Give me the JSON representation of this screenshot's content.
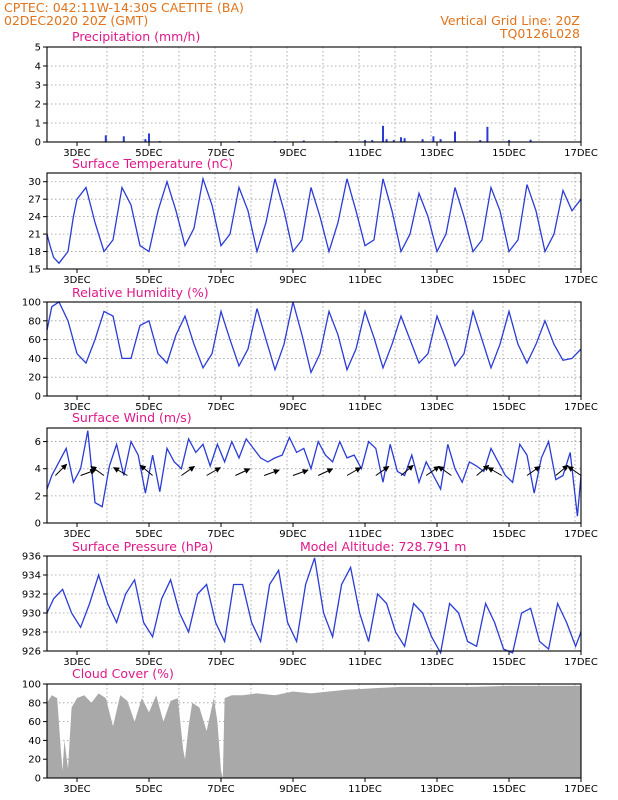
{
  "header": {
    "left_line1": "CPTEC:   042:11W-14:30S   CAETITE (BA)",
    "left_line2": "02DEC2020 20Z (GMT)",
    "right_line1": "Vertical Grid Line: 20Z",
    "right_line2": "TQ0126L028"
  },
  "colors": {
    "header": "#e0731c",
    "title": "#e0188a",
    "series": "#2b3cd6",
    "cloud": "#a9a9a9",
    "arrow": "#000000"
  },
  "chart_data": [
    {
      "type": "bar",
      "title": "Precipitation (mm/h)",
      "x_tick_labels": [
        "3DEC",
        "5DEC",
        "7DEC",
        "9DEC",
        "11DEC",
        "13DEC",
        "15DEC",
        "17DEC"
      ],
      "x_range": [
        2.1667,
        17.0
      ],
      "ylim": [
        0,
        5
      ],
      "yticks": [
        0,
        1,
        2,
        3,
        4,
        5
      ],
      "x": [
        3.8,
        4.3,
        4.9,
        5.0,
        5.3,
        7.5,
        8.5,
        9.3,
        10.2,
        11.0,
        11.2,
        11.5,
        11.6,
        11.8,
        12.0,
        12.1,
        12.6,
        12.9,
        13.1,
        13.5,
        14.2,
        14.4,
        15.0,
        15.6
      ],
      "values": [
        0.35,
        0.3,
        0.15,
        0.45,
        0.05,
        0.05,
        0.05,
        0.08,
        0.05,
        0.1,
        0.1,
        0.85,
        0.15,
        0.1,
        0.25,
        0.2,
        0.15,
        0.3,
        0.15,
        0.55,
        0.1,
        0.8,
        0.1,
        0.12
      ]
    },
    {
      "type": "line",
      "title": "Surface Temperature (nC)",
      "x_tick_labels": [
        "3DEC",
        "5DEC",
        "7DEC",
        "9DEC",
        "11DEC",
        "13DEC",
        "15DEC",
        "17DEC"
      ],
      "x_range": [
        2.1667,
        17.0
      ],
      "ylim": [
        15,
        31.5
      ],
      "yticks": [
        15,
        18,
        21,
        24,
        27,
        30
      ],
      "x": [
        2.1667,
        2.25,
        2.35,
        2.5,
        2.75,
        2.9,
        3.0,
        3.25,
        3.5,
        3.75,
        4.0,
        4.25,
        4.5,
        4.75,
        5.0,
        5.25,
        5.5,
        5.75,
        6.0,
        6.25,
        6.5,
        6.75,
        7.0,
        7.25,
        7.5,
        7.75,
        8.0,
        8.25,
        8.5,
        8.75,
        9.0,
        9.25,
        9.5,
        9.75,
        10.0,
        10.25,
        10.5,
        10.75,
        11.0,
        11.25,
        11.5,
        11.75,
        12.0,
        12.25,
        12.5,
        12.75,
        13.0,
        13.25,
        13.5,
        13.75,
        14.0,
        14.25,
        14.5,
        14.75,
        15.0,
        15.25,
        15.5,
        15.75,
        16.0,
        16.25,
        16.5,
        16.75,
        17.0
      ],
      "values": [
        21,
        19,
        17,
        16,
        18,
        24,
        27,
        29,
        23,
        18,
        20,
        29,
        26,
        19,
        18,
        25,
        30,
        25,
        19,
        22,
        30.5,
        26,
        19,
        21,
        29,
        25,
        18,
        23,
        30.5,
        25,
        18,
        20,
        29,
        24,
        18,
        23,
        30.5,
        25,
        19,
        20,
        30.5,
        25,
        18,
        21,
        28,
        24,
        18,
        21,
        29,
        24,
        18,
        20,
        29,
        25,
        18,
        20,
        29.5,
        25,
        18,
        21,
        28.5,
        25,
        27
      ]
    },
    {
      "type": "line",
      "title": "Relative Humidity (%)",
      "x_tick_labels": [
        "3DEC",
        "5DEC",
        "7DEC",
        "9DEC",
        "11DEC",
        "13DEC",
        "15DEC",
        "17DEC"
      ],
      "x_range": [
        2.1667,
        17.0
      ],
      "ylim": [
        0,
        100
      ],
      "yticks": [
        0,
        20,
        40,
        60,
        80,
        100
      ],
      "x": [
        2.1667,
        2.3,
        2.5,
        2.75,
        3.0,
        3.25,
        3.5,
        3.75,
        4.0,
        4.25,
        4.5,
        4.75,
        5.0,
        5.25,
        5.5,
        5.75,
        6.0,
        6.25,
        6.5,
        6.75,
        7.0,
        7.25,
        7.5,
        7.75,
        8.0,
        8.25,
        8.5,
        8.75,
        9.0,
        9.25,
        9.5,
        9.75,
        10.0,
        10.25,
        10.5,
        10.75,
        11.0,
        11.25,
        11.5,
        11.75,
        12.0,
        12.25,
        12.5,
        12.75,
        13.0,
        13.25,
        13.5,
        13.75,
        14.0,
        14.25,
        14.5,
        14.75,
        15.0,
        15.25,
        15.5,
        15.75,
        16.0,
        16.25,
        16.5,
        16.75,
        17.0
      ],
      "values": [
        70,
        95,
        100,
        80,
        45,
        35,
        60,
        90,
        85,
        40,
        40,
        75,
        80,
        45,
        35,
        65,
        85,
        55,
        30,
        45,
        90,
        60,
        32,
        50,
        93,
        60,
        28,
        55,
        100,
        65,
        25,
        45,
        90,
        65,
        28,
        50,
        90,
        62,
        30,
        55,
        85,
        60,
        35,
        45,
        85,
        60,
        32,
        45,
        90,
        60,
        30,
        55,
        90,
        55,
        35,
        55,
        80,
        55,
        38,
        40,
        50
      ]
    },
    {
      "type": "line",
      "title": "Surface Wind (m/s)",
      "x_tick_labels": [
        "3DEC",
        "5DEC",
        "7DEC",
        "9DEC",
        "11DEC",
        "13DEC",
        "15DEC",
        "17DEC"
      ],
      "x_range": [
        2.1667,
        17.0
      ],
      "ylim": [
        0,
        7
      ],
      "yticks": [
        0,
        2,
        4,
        6
      ],
      "x": [
        2.1667,
        2.3,
        2.5,
        2.7,
        2.9,
        3.1,
        3.3,
        3.5,
        3.7,
        3.9,
        4.1,
        4.3,
        4.5,
        4.7,
        4.9,
        5.1,
        5.3,
        5.5,
        5.7,
        5.9,
        6.1,
        6.3,
        6.5,
        6.7,
        6.9,
        7.1,
        7.3,
        7.5,
        7.7,
        7.9,
        8.1,
        8.3,
        8.5,
        8.7,
        8.9,
        9.1,
        9.3,
        9.5,
        9.7,
        9.9,
        10.1,
        10.3,
        10.5,
        10.7,
        10.9,
        11.1,
        11.3,
        11.5,
        11.7,
        11.9,
        12.1,
        12.3,
        12.5,
        12.7,
        12.9,
        13.1,
        13.3,
        13.5,
        13.7,
        13.9,
        14.1,
        14.3,
        14.5,
        14.7,
        14.9,
        15.1,
        15.3,
        15.5,
        15.7,
        15.9,
        16.1,
        16.3,
        16.5,
        16.7,
        16.9,
        17.0
      ],
      "values": [
        2.5,
        3.5,
        4.5,
        5.5,
        3.0,
        4.0,
        6.8,
        1.5,
        1.2,
        4.2,
        5.8,
        3.5,
        6.0,
        5.0,
        2.2,
        5.0,
        2.3,
        5.5,
        4.5,
        4.0,
        6.2,
        5.2,
        5.8,
        4.2,
        5.8,
        4.5,
        6.0,
        4.8,
        6.2,
        5.5,
        4.8,
        4.5,
        4.8,
        5.0,
        6.3,
        5.2,
        5.5,
        4.0,
        6.0,
        5.0,
        4.5,
        6.0,
        4.8,
        5.0,
        4.0,
        6.0,
        5.5,
        3.0,
        5.8,
        3.8,
        3.5,
        5.0,
        3.0,
        4.5,
        3.5,
        2.5,
        5.8,
        4.0,
        3.0,
        4.5,
        4.2,
        3.8,
        5.5,
        4.5,
        3.5,
        3.0,
        5.8,
        5.0,
        2.2,
        4.8,
        6.0,
        3.2,
        3.5,
        5.2,
        0.5,
        3.5
      ],
      "wind_vectors": {
        "x": [
          2.4,
          3.1,
          3.75,
          4.4,
          5.1,
          5.9,
          6.6,
          7.4,
          8.2,
          9.0,
          9.7,
          10.5,
          11.3,
          12.0,
          12.7,
          13.4,
          14.1,
          14.8,
          15.5,
          16.3,
          17.0
        ],
        "direction_deg": [
          225,
          200,
          325,
          330,
          320,
          215,
          210,
          205,
          200,
          200,
          205,
          210,
          215,
          220,
          215,
          325,
          220,
          330,
          215,
          220,
          325
        ]
      }
    },
    {
      "type": "line",
      "title": "Surface Pressure (hPa)",
      "annotation": "Model Altitude: 728.791 m",
      "x_tick_labels": [
        "3DEC",
        "5DEC",
        "7DEC",
        "9DEC",
        "11DEC",
        "13DEC",
        "15DEC",
        "17DEC"
      ],
      "x_range": [
        2.1667,
        17.0
      ],
      "ylim": [
        926,
        936
      ],
      "yticks": [
        926,
        928,
        930,
        932,
        934,
        936
      ],
      "x": [
        2.1667,
        2.35,
        2.6,
        2.85,
        3.1,
        3.35,
        3.6,
        3.85,
        4.1,
        4.35,
        4.6,
        4.85,
        5.1,
        5.35,
        5.6,
        5.85,
        6.1,
        6.35,
        6.6,
        6.85,
        7.1,
        7.35,
        7.6,
        7.85,
        8.1,
        8.35,
        8.6,
        8.85,
        9.1,
        9.35,
        9.6,
        9.85,
        10.1,
        10.35,
        10.6,
        10.85,
        11.1,
        11.35,
        11.6,
        11.85,
        12.1,
        12.35,
        12.6,
        12.85,
        13.1,
        13.35,
        13.6,
        13.85,
        14.1,
        14.35,
        14.6,
        14.85,
        15.1,
        15.35,
        15.6,
        15.85,
        16.1,
        16.35,
        16.6,
        16.85,
        17.0
      ],
      "values": [
        930,
        931.5,
        932.5,
        930,
        928.5,
        931,
        934,
        931,
        929,
        932,
        933.5,
        929,
        927.5,
        931.5,
        933.5,
        930,
        928,
        932,
        933,
        929,
        927,
        933,
        933,
        929,
        927,
        933,
        934.5,
        929,
        927,
        933,
        935.8,
        930,
        927.5,
        933,
        934.8,
        930,
        927,
        932,
        931,
        928,
        926.5,
        931,
        930,
        927.5,
        925.8,
        931,
        930,
        927,
        926.5,
        931,
        929,
        926.2,
        925.8,
        930,
        930.5,
        927,
        926.2,
        931,
        929,
        926.5,
        928
      ]
    },
    {
      "type": "area",
      "title": "Cloud Cover (%)",
      "x_tick_labels": [
        "3DEC",
        "5DEC",
        "7DEC",
        "9DEC",
        "11DEC",
        "13DEC",
        "15DEC",
        "17DEC"
      ],
      "x_range": [
        2.1667,
        17.0
      ],
      "ylim": [
        0,
        100
      ],
      "yticks": [
        0,
        20,
        40,
        60,
        80,
        100
      ],
      "x": [
        2.1667,
        2.3,
        2.45,
        2.55,
        2.6,
        2.65,
        2.75,
        2.85,
        3.0,
        3.2,
        3.4,
        3.6,
        3.8,
        4.0,
        4.2,
        4.4,
        4.6,
        4.8,
        5.0,
        5.2,
        5.4,
        5.6,
        5.8,
        5.95,
        6.0,
        6.1,
        6.2,
        6.4,
        6.6,
        6.8,
        6.9,
        7.0,
        7.05,
        7.1,
        7.3,
        7.6,
        8.0,
        8.5,
        9.0,
        9.5,
        10.0,
        10.5,
        11.0,
        11.5,
        12.0,
        12.5,
        13.0,
        13.5,
        14.0,
        15.0,
        16.0,
        17.0
      ],
      "values": [
        80,
        88,
        85,
        30,
        8,
        40,
        10,
        75,
        85,
        88,
        80,
        90,
        85,
        55,
        88,
        82,
        60,
        85,
        70,
        88,
        60,
        82,
        85,
        30,
        20,
        55,
        80,
        75,
        50,
        85,
        60,
        8,
        0,
        85,
        88,
        88,
        90,
        88,
        92,
        90,
        92,
        94,
        95,
        96,
        97,
        97,
        97,
        97,
        97,
        98,
        98,
        98
      ]
    }
  ]
}
